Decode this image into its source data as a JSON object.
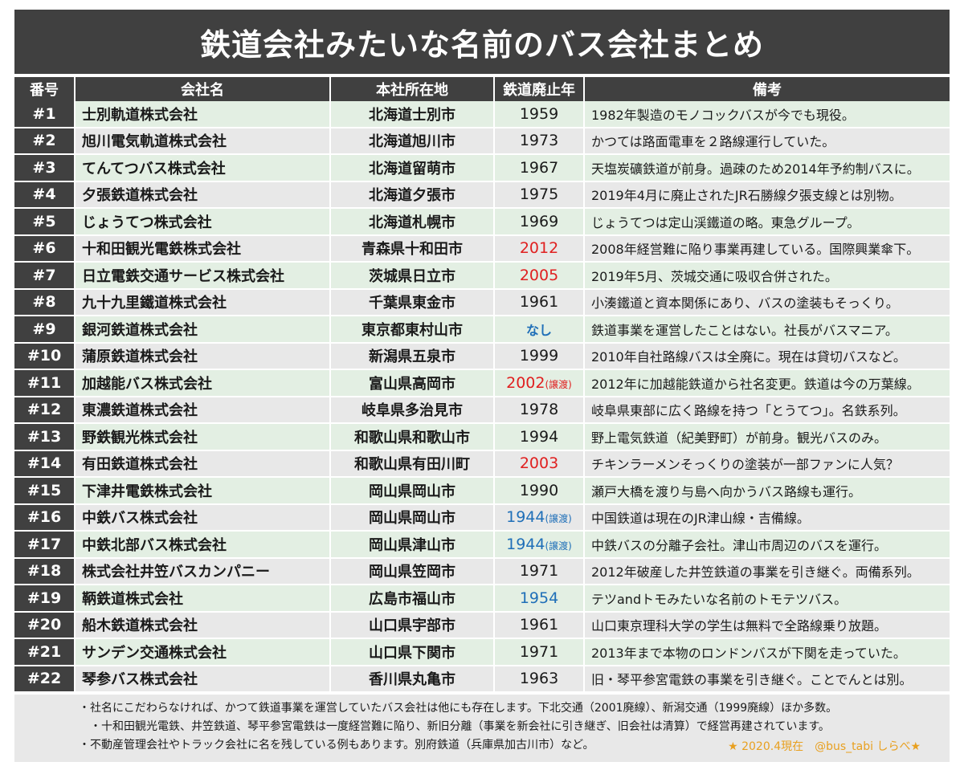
{
  "title": "鉄道会社みたいな名前のバス会社まとめ",
  "columns": [
    "番号",
    "会社名",
    "本社所在地",
    "鉄道廃止年",
    "備考"
  ],
  "rows": [
    {
      "num": "#1",
      "name": "士別軌道株式会社",
      "loc": "北海道士別市",
      "year": "1959",
      "yc": "",
      "suffix": "",
      "note": "1982年製造のモノコックバスが今でも現役。"
    },
    {
      "num": "#2",
      "name": "旭川電気軌道株式会社",
      "loc": "北海道旭川市",
      "year": "1973",
      "yc": "",
      "suffix": "",
      "note": "かつては路面電車を２路線運行していた。"
    },
    {
      "num": "#3",
      "name": "てんてつバス株式会社",
      "loc": "北海道留萌市",
      "year": "1967",
      "yc": "",
      "suffix": "",
      "note": "天塩炭礦鉄道が前身。過疎のため2014年予約制バスに。"
    },
    {
      "num": "#4",
      "name": "夕張鉄道株式会社",
      "loc": "北海道夕張市",
      "year": "1975",
      "yc": "",
      "suffix": "",
      "note": "2019年4月に廃止されたJR石勝線夕張支線とは別物。"
    },
    {
      "num": "#5",
      "name": "じょうてつ株式会社",
      "loc": "北海道札幌市",
      "year": "1969",
      "yc": "",
      "suffix": "",
      "note": "じょうてつは定山渓鐵道の略。東急グループ。"
    },
    {
      "num": "#6",
      "name": "十和田観光電鉄株式会社",
      "loc": "青森県十和田市",
      "year": "2012",
      "yc": "red",
      "suffix": "",
      "note": "2008年経営難に陥り事業再建している。国際興業傘下。"
    },
    {
      "num": "#7",
      "name": "日立電鉄交通サービス株式会社",
      "loc": "茨城県日立市",
      "year": "2005",
      "yc": "red",
      "suffix": "",
      "note": "2019年5月、茨城交通に吸収合併された。"
    },
    {
      "num": "#8",
      "name": "九十九里鐵道株式会社",
      "loc": "千葉県東金市",
      "year": "1961",
      "yc": "",
      "suffix": "",
      "note": "小湊鐵道と資本関係にあり、バスの塗装もそっくり。"
    },
    {
      "num": "#9",
      "name": "銀河鉄道株式会社",
      "loc": "東京都東村山市",
      "year": "なし",
      "yc": "blue",
      "suffix": "",
      "note": "鉄道事業を運営したことはない。社長がバスマニア。"
    },
    {
      "num": "#10",
      "name": "蒲原鉄道株式会社",
      "loc": "新潟県五泉市",
      "year": "1999",
      "yc": "",
      "suffix": "",
      "note": "2010年自社路線バスは全廃に。現在は貸切バスなど。"
    },
    {
      "num": "#11",
      "name": "加越能バス株式会社",
      "loc": "富山県高岡市",
      "year": "2002",
      "yc": "red",
      "suffix": "(譲渡)",
      "note": "2012年に加越能鉄道から社名変更。鉄道は今の万葉線。"
    },
    {
      "num": "#12",
      "name": "東濃鉄道株式会社",
      "loc": "岐阜県多治見市",
      "year": "1978",
      "yc": "",
      "suffix": "",
      "note": "岐阜県東部に広く路線を持つ「とうてつ」。名鉄系列。"
    },
    {
      "num": "#13",
      "name": "野鉄観光株式会社",
      "loc": "和歌山県和歌山市",
      "year": "1994",
      "yc": "",
      "suffix": "",
      "note": "野上電気鉄道（紀美野町）が前身。観光バスのみ。"
    },
    {
      "num": "#14",
      "name": "有田鉄道株式会社",
      "loc": "和歌山県有田川町",
      "year": "2003",
      "yc": "red",
      "suffix": "",
      "note": "チキンラーメンそっくりの塗装が一部ファンに人気？"
    },
    {
      "num": "#15",
      "name": "下津井電鉄株式会社",
      "loc": "岡山県岡山市",
      "year": "1990",
      "yc": "",
      "suffix": "",
      "note": "瀬戸大橋を渡り与島へ向かうバス路線も運行。"
    },
    {
      "num": "#16",
      "name": "中鉄バス株式会社",
      "loc": "岡山県岡山市",
      "year": "1944",
      "yc": "blue",
      "suffix": "(譲渡)",
      "note": "中国鉄道は現在のJR津山線・吉備線。"
    },
    {
      "num": "#17",
      "name": "中鉄北部バス株式会社",
      "loc": "岡山県津山市",
      "year": "1944",
      "yc": "blue",
      "suffix": "(譲渡)",
      "note": "中鉄バスの分離子会社。津山市周辺のバスを運行。"
    },
    {
      "num": "#18",
      "name": "株式会社井笠バスカンパニー",
      "loc": "岡山県笠岡市",
      "year": "1971",
      "yc": "",
      "suffix": "",
      "note": "2012年破産した井笠鉄道の事業を引き継ぐ。両備系列。"
    },
    {
      "num": "#19",
      "name": "鞆鉄道株式会社",
      "loc": "広島市福山市",
      "year": "1954",
      "yc": "blue",
      "suffix": "",
      "note": "テツandトモみたいな名前のトモテツバス。"
    },
    {
      "num": "#20",
      "name": "船木鉄道株式会社",
      "loc": "山口県宇部市",
      "year": "1961",
      "yc": "",
      "suffix": "",
      "note": "山口東京理科大学の学生は無料で全路線乗り放題。"
    },
    {
      "num": "#21",
      "name": "サンデン交通株式会社",
      "loc": "山口県下関市",
      "year": "1971",
      "yc": "",
      "suffix": "",
      "note": "2013年まで本物のロンドンバスが下関を走っていた。"
    },
    {
      "num": "#22",
      "name": "琴参バス株式会社",
      "loc": "香川県丸亀市",
      "year": "1963",
      "yc": "",
      "suffix": "",
      "note": "旧・琴平参宮電鉄の事業を引き継ぐ。ことでんとは別。"
    }
  ],
  "notes": {
    "line1": "・社名にこだわらなければ、かつて鉄道事業を運営していたバス会社は他にも存在します。下北交通（2001廃線）、新潟交通（1999廃線）ほか多数。",
    "line2": "・十和田観光電鉄、井笠鉄道、琴平参宮電鉄は一度経営難に陥り、新旧分離（事業を新会社に引き継ぎ、旧会社は清算）で経営再建されています。",
    "line3": "・不動産管理会社やトラック会社に名を残している例もあります。別府鉄道（兵庫県加古川市）など。",
    "credit": "★ 2020.4現在　@bus_tabi しらべ★"
  },
  "colors": {
    "header_bg": "#404040",
    "row_green": "#e3efe3",
    "row_gray": "#e8e8e8",
    "red": "#e02020",
    "blue": "#1f6fb8",
    "credit": "#e8a020"
  }
}
